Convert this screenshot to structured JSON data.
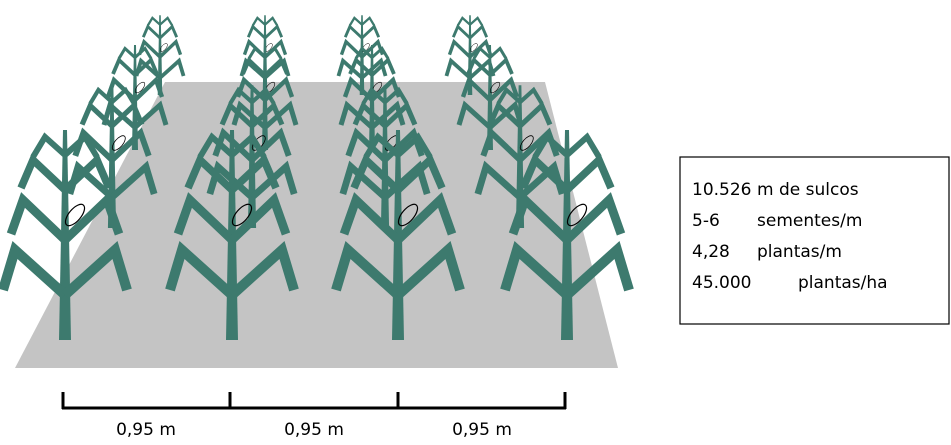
{
  "info_box": {
    "rows": [
      [
        "10.526",
        "m de sulcos"
      ],
      [
        "5-6",
        "sementes/m"
      ],
      [
        "4,28",
        "plantas/m"
      ],
      [
        "45.000",
        "plantas/ha"
      ]
    ]
  },
  "scale": {
    "labels": [
      "0,95 m",
      "0,95 m",
      "0,95 m"
    ]
  }
}
